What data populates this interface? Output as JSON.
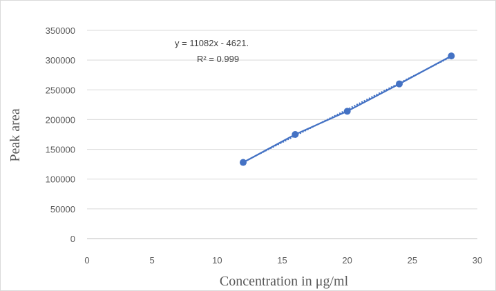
{
  "chart_data": {
    "type": "scatter",
    "title": "",
    "xlabel": "Concentration in μg/ml",
    "ylabel": "Peak area",
    "xlim": [
      0,
      30
    ],
    "ylim": [
      0,
      350000
    ],
    "xticks": [
      0,
      5,
      10,
      15,
      20,
      25,
      30
    ],
    "yticks": [
      0,
      50000,
      100000,
      150000,
      200000,
      250000,
      300000,
      350000
    ],
    "grid": "horizontal",
    "series": [
      {
        "x": [
          12,
          16,
          20,
          24,
          28
        ],
        "y": [
          128000,
          175000,
          214000,
          260000,
          307000
        ],
        "color": "#4472c4",
        "line": "solid",
        "markers": true
      }
    ],
    "trendline": {
      "type": "linear",
      "style": "dotted",
      "color": "#4472c4",
      "slope": 11082,
      "intercept": -4621,
      "x_range": [
        12,
        28
      ],
      "equation_label": "y = 11082x - 4621.",
      "r2_label": "R² = 0.999"
    }
  }
}
